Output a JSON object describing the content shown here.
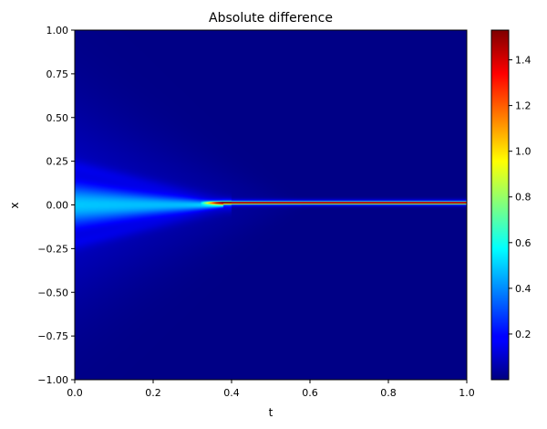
{
  "chart_data": {
    "type": "heatmap",
    "title": "Absolute difference",
    "xlabel": "t",
    "ylabel": "x",
    "xlim": [
      0.0,
      1.0
    ],
    "ylim": [
      -1.0,
      1.0
    ],
    "xticks": [
      "0.0",
      "0.2",
      "0.4",
      "0.6",
      "0.8",
      "1.0"
    ],
    "yticks": [
      "1.00",
      "0.75",
      "0.50",
      "0.25",
      "0.00",
      "−0.25",
      "−0.50",
      "−0.75",
      "−1.00"
    ],
    "colorbar": {
      "colormap": "jet",
      "range": [
        0.0,
        1.53
      ],
      "ticks": [
        "0.2",
        "0.4",
        "0.6",
        "0.8",
        "1.0",
        "1.2",
        "1.4"
      ]
    },
    "grid": false,
    "features": [
      {
        "t_start": 0.0,
        "t_end": 0.35,
        "x_center": 0.0,
        "shape": "wedge",
        "peak_value": 0.42
      },
      {
        "t_start": 0.36,
        "t_end": 1.0,
        "x_center": 0.01,
        "shape": "thin band",
        "peak_value": 1.53
      },
      {
        "t_start": 0.0,
        "t_end": 0.45,
        "x_center": 0.0,
        "shape": "fan",
        "peak_value": 0.15
      }
    ]
  }
}
